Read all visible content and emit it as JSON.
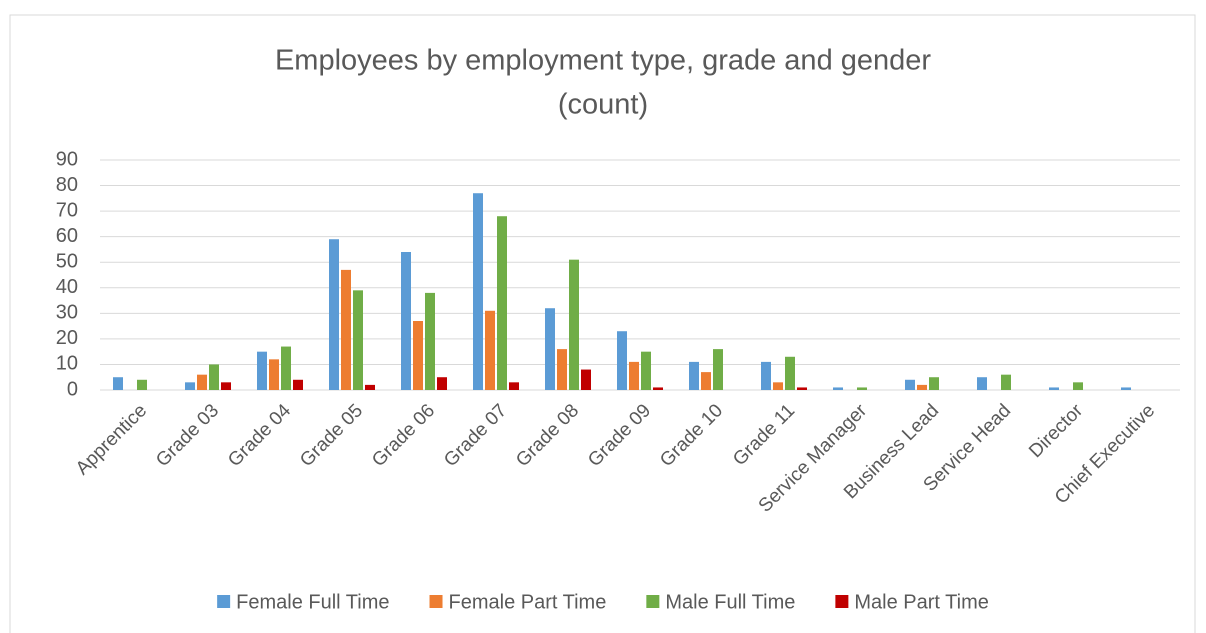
{
  "chart_data": {
    "type": "bar",
    "title": [
      "Employees by employment type, grade and gender",
      "(count)"
    ],
    "categories": [
      "Apprentice",
      "Grade 03",
      "Grade 04",
      "Grade 05",
      "Grade 06",
      "Grade 07",
      "Grade 08",
      "Grade 09",
      "Grade 10",
      "Grade 11",
      "Service Manager",
      "Business Lead",
      "Service Head",
      "Director",
      "Chief Executive"
    ],
    "series": [
      {
        "name": "Female Full Time",
        "color": "#5b9bd5",
        "values": [
          5,
          3,
          15,
          59,
          54,
          77,
          32,
          23,
          11,
          11,
          1,
          4,
          5,
          1,
          1
        ]
      },
      {
        "name": "Female Part Time",
        "color": "#ed7d31",
        "values": [
          0,
          6,
          12,
          47,
          27,
          31,
          16,
          11,
          7,
          3,
          0,
          2,
          0,
          0,
          0
        ]
      },
      {
        "name": "Male Full Time",
        "color": "#70ad47",
        "values": [
          4,
          10,
          17,
          39,
          38,
          68,
          51,
          15,
          16,
          13,
          1,
          5,
          6,
          3,
          0
        ]
      },
      {
        "name": "Male Part Time",
        "color": "#c00000",
        "values": [
          0,
          3,
          4,
          2,
          5,
          3,
          8,
          1,
          0,
          1,
          0,
          0,
          0,
          0,
          0
        ]
      }
    ],
    "ylim": [
      0,
      90
    ],
    "yticks": [
      0,
      10,
      20,
      30,
      40,
      50,
      60,
      70,
      80,
      90
    ],
    "grid": true,
    "legend": "bottom"
  }
}
